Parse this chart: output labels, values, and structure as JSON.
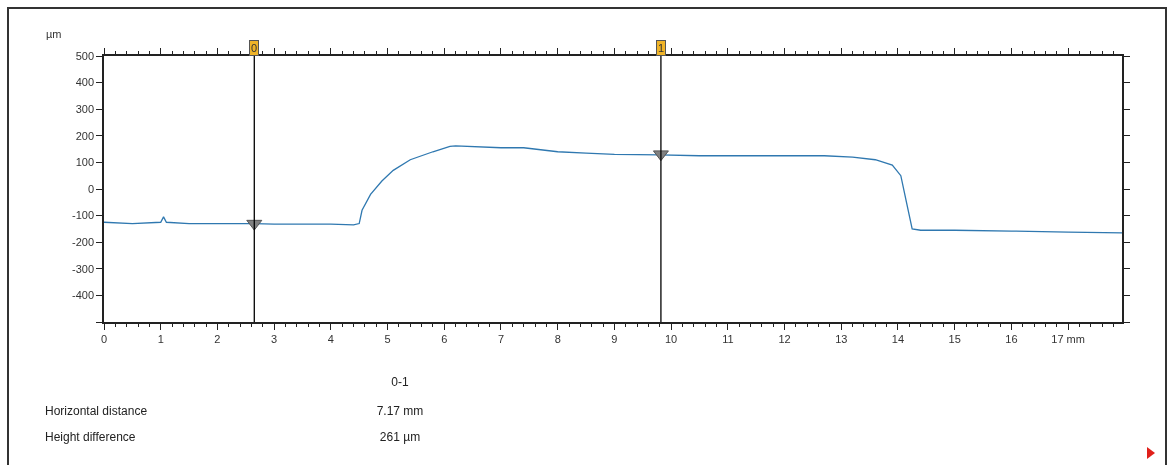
{
  "chart_data": {
    "type": "line",
    "ylabel": "µm",
    "x": [
      0,
      0.5,
      1.0,
      1.05,
      1.1,
      1.5,
      2,
      2.65,
      3,
      4,
      4.4,
      4.5,
      4.55,
      4.7,
      4.9,
      5.1,
      5.4,
      5.8,
      6.1,
      6.2,
      7,
      7.4,
      8,
      8.5,
      9,
      9.8,
      10.5,
      11,
      12,
      12.7,
      13.2,
      13.6,
      13.9,
      14.05,
      14.15,
      14.25,
      14.4,
      15,
      16,
      17,
      17.95
    ],
    "series": [
      {
        "color": "#2f78b0",
        "values": [
          -125,
          -130,
          -125,
          -105,
          -125,
          -130,
          -130,
          -130,
          -132,
          -132,
          -135,
          -130,
          -80,
          -20,
          30,
          70,
          110,
          140,
          160,
          162,
          155,
          155,
          140,
          135,
          130,
          128,
          125,
          125,
          125,
          125,
          120,
          110,
          90,
          50,
          -50,
          -150,
          -155,
          -155,
          -158,
          -162,
          -165
        ]
      },
      {
        "type": "scatter",
        "marker": "triangle",
        "color": "#808080",
        "x": [
          2.65,
          9.82
        ],
        "values": [
          -130,
          131
        ]
      }
    ],
    "xlim": [
      0,
      17.95
    ],
    "xticks": [
      0,
      1,
      2,
      3,
      4,
      5,
      6,
      7,
      8,
      9,
      10,
      11,
      12,
      13,
      14,
      15,
      16,
      {
        "value": 17,
        "label": "17 mm"
      }
    ],
    "ylim": [
      -500,
      500
    ],
    "yticks": [
      500,
      400,
      300,
      200,
      100,
      0,
      -100,
      -200,
      -300,
      -400,
      {
        "value": -500,
        "label": null
      }
    ],
    "grid": false,
    "ref_lines": [
      {
        "axis": "x",
        "value": 2.65,
        "color": "#000000"
      },
      {
        "axis": "x",
        "value": 9.82,
        "color": "#000000"
      }
    ],
    "annotations": [
      {
        "text": "0",
        "x": 2.65,
        "y": 500
      },
      {
        "text": "1",
        "x": 9.82,
        "y": 500
      },
      "0-1",
      "Horizontal distance",
      "7.17 mm",
      "Height difference",
      "261 µm"
    ]
  }
}
